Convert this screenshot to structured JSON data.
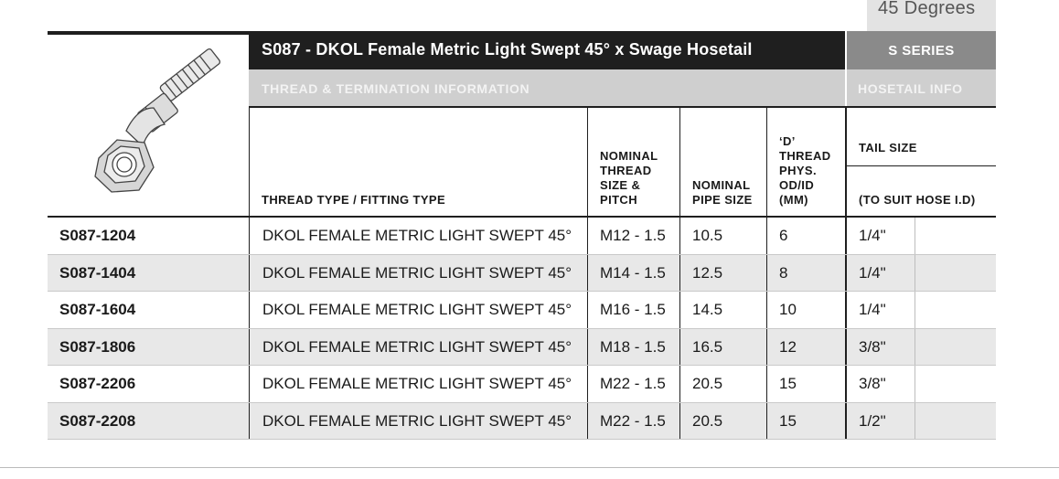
{
  "tab_label": "45 Degrees",
  "title": "S087 - DKOL Female Metric Light Swept 45° x Swage Hosetail",
  "series": "S SERIES",
  "section_left": "THREAD & TERMINATION INFORMATION",
  "section_right": "HOSETAIL INFO",
  "headers": {
    "thread_type": "THREAD TYPE / FITTING TYPE",
    "nominal_thread": "NOMINAL\nTHREAD\nSIZE &\nPITCH",
    "nominal_pipe": "NOMINAL\nPIPE SIZE",
    "d_thread": "‘D’\nTHREAD\nPHYS.\nOD/ID\n(MM)",
    "tail_size": "TAIL SIZE",
    "tail_sub": "(TO SUIT HOSE I.D)"
  },
  "rows": [
    {
      "part": "S087-1204",
      "type": "DKOL FEMALE METRIC LIGHT SWEPT 45°",
      "thread": "M12 - 1.5",
      "pipe": "10.5",
      "d": "6",
      "tail": "1/4\""
    },
    {
      "part": "S087-1404",
      "type": "DKOL FEMALE METRIC LIGHT SWEPT 45°",
      "thread": "M14 - 1.5",
      "pipe": "12.5",
      "d": "8",
      "tail": "1/4\""
    },
    {
      "part": "S087-1604",
      "type": "DKOL FEMALE METRIC LIGHT SWEPT 45°",
      "thread": "M16 - 1.5",
      "pipe": "14.5",
      "d": "10",
      "tail": "1/4\""
    },
    {
      "part": "S087-1806",
      "type": "DKOL FEMALE METRIC LIGHT SWEPT 45°",
      "thread": "M18 - 1.5",
      "pipe": "16.5",
      "d": "12",
      "tail": "3/8\""
    },
    {
      "part": "S087-2206",
      "type": "DKOL FEMALE METRIC LIGHT SWEPT 45°",
      "thread": "M22 - 1.5",
      "pipe": "20.5",
      "d": "15",
      "tail": "3/8\""
    },
    {
      "part": "S087-2208",
      "type": "DKOL FEMALE METRIC LIGHT SWEPT 45°",
      "thread": "M22 - 1.5",
      "pipe": "20.5",
      "d": "15",
      "tail": "1/2\""
    }
  ]
}
